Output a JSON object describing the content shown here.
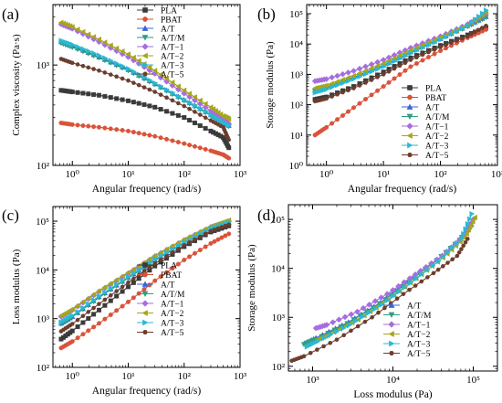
{
  "series_styles": [
    {
      "name": "PLA",
      "color": "#3a3a3a",
      "marker": "square"
    },
    {
      "name": "PBAT",
      "color": "#d9533a",
      "marker": "circle"
    },
    {
      "name": "A/T",
      "color": "#3b63d8",
      "marker": "triangle-up"
    },
    {
      "name": "A/T/M",
      "color": "#2e9e7e",
      "marker": "triangle-down"
    },
    {
      "name": "A/T−1",
      "color": "#a66de0",
      "marker": "diamond"
    },
    {
      "name": "A/T−2",
      "color": "#a6a61a",
      "marker": "triangle-left"
    },
    {
      "name": "A/T−3",
      "color": "#29b9d6",
      "marker": "triangle-right"
    },
    {
      "name": "A/T−5",
      "color": "#6b3d2e",
      "marker": "hexagon"
    }
  ],
  "chart_data": [
    {
      "panel": "(a)",
      "type": "line",
      "xlabel": "Angular frequency (rad/s)",
      "ylabel": "Complex viscosity (Pa·s)",
      "xscale": "log",
      "yscale": "log",
      "xlim": [
        0.45,
        1000
      ],
      "ylim": [
        100,
        4000
      ],
      "xticks": [
        {
          "v": 1,
          "t": "10⁰"
        },
        {
          "v": 10,
          "t": "10¹"
        },
        {
          "v": 100,
          "t": "10²"
        },
        {
          "v": 1000,
          "t": "10³"
        }
      ],
      "yticks": [
        {
          "v": 100,
          "t": "10²"
        },
        {
          "v": 1000,
          "t": "10³"
        }
      ],
      "legend": [
        "PLA",
        "PBAT",
        "A/T",
        "A/T/M",
        "A/T−1",
        "A/T−2",
        "A/T−3",
        "A/T−5"
      ],
      "legend_position": "top-right",
      "series": [
        {
          "name": "PLA",
          "x": [
            0.63,
            1,
            3,
            10,
            30,
            100,
            300,
            500,
            630
          ],
          "y": [
            560,
            540,
            500,
            440,
            380,
            300,
            220,
            190,
            150
          ]
        },
        {
          "name": "PBAT",
          "x": [
            0.63,
            1,
            3,
            10,
            30,
            100,
            300,
            500,
            630
          ],
          "y": [
            265,
            255,
            240,
            220,
            195,
            165,
            140,
            128,
            118
          ]
        },
        {
          "name": "A/T",
          "x": [
            0.63,
            1,
            3,
            10,
            30,
            100,
            300,
            500,
            630
          ],
          "y": [
            1700,
            1550,
            1200,
            900,
            650,
            450,
            320,
            270,
            250
          ]
        },
        {
          "name": "A/T/M",
          "x": [
            0.63,
            1,
            3,
            10,
            30,
            100,
            300,
            500,
            630
          ],
          "y": [
            1650,
            1500,
            1180,
            880,
            640,
            440,
            315,
            265,
            245
          ]
        },
        {
          "name": "A/T−1",
          "x": [
            0.63,
            1,
            3,
            10,
            30,
            100,
            300,
            500,
            630
          ],
          "y": [
            2550,
            2300,
            1700,
            1200,
            820,
            520,
            350,
            290,
            260
          ]
        },
        {
          "name": "A/T−2",
          "x": [
            0.63,
            1,
            3,
            10,
            30,
            100,
            300,
            500,
            630
          ],
          "y": [
            2650,
            2400,
            1800,
            1280,
            880,
            560,
            380,
            310,
            290
          ]
        },
        {
          "name": "A/T−3",
          "x": [
            0.63,
            1,
            3,
            10,
            30,
            100,
            300,
            500,
            630
          ],
          "y": [
            1750,
            1600,
            1250,
            920,
            660,
            450,
            320,
            270,
            250
          ]
        },
        {
          "name": "A/T−5",
          "x": [
            0.63,
            1,
            3,
            10,
            30,
            100,
            300,
            500,
            630
          ],
          "y": [
            1150,
            1050,
            880,
            700,
            540,
            390,
            280,
            240,
            180
          ]
        }
      ]
    },
    {
      "panel": "(b)",
      "type": "line",
      "xlabel": "Angular frequency (rad/s)",
      "ylabel": "Storage modulus (Pa)",
      "xscale": "log",
      "yscale": "log",
      "xlim": [
        0.45,
        1000
      ],
      "ylim": [
        1,
        200000
      ],
      "xticks": [
        {
          "v": 1,
          "t": "10⁰"
        },
        {
          "v": 10,
          "t": "10¹"
        },
        {
          "v": 100,
          "t": "10²"
        },
        {
          "v": 1000,
          "t": "10³"
        }
      ],
      "yticks": [
        {
          "v": 1,
          "t": "10⁰"
        },
        {
          "v": 10,
          "t": "10¹"
        },
        {
          "v": 100,
          "t": "10²"
        },
        {
          "v": 1000,
          "t": "10³"
        },
        {
          "v": 10000,
          "t": "10⁴"
        },
        {
          "v": 100000,
          "t": "10⁵"
        }
      ],
      "legend": [
        "PLA",
        "PBAT",
        "A/T",
        "A/T/M",
        "A/T−1",
        "A/T−2",
        "A/T−3",
        "A/T−5"
      ],
      "legend_position": "bottom-right",
      "series": [
        {
          "name": "PLA",
          "x": [
            0.63,
            1,
            3,
            10,
            30,
            100,
            300,
            630
          ],
          "y": [
            150,
            180,
            400,
            1200,
            3500,
            9000,
            20000,
            35000
          ]
        },
        {
          "name": "PBAT",
          "x": [
            0.63,
            1,
            3,
            10,
            30,
            100,
            300,
            630
          ],
          "y": [
            10,
            18,
            80,
            400,
            1800,
            6000,
            16000,
            30000
          ]
        },
        {
          "name": "A/T",
          "x": [
            0.63,
            1,
            3,
            10,
            30,
            100,
            300,
            630
          ],
          "y": [
            300,
            380,
            800,
            2000,
            5500,
            15000,
            40000,
            80000
          ]
        },
        {
          "name": "A/T/M",
          "x": [
            0.63,
            1,
            3,
            10,
            30,
            100,
            300,
            630
          ],
          "y": [
            280,
            350,
            750,
            1900,
            5200,
            14500,
            38000,
            75000
          ]
        },
        {
          "name": "A/T−1",
          "x": [
            0.63,
            1,
            3,
            10,
            30,
            100,
            300,
            630
          ],
          "y": [
            600,
            700,
            1300,
            3000,
            7500,
            18000,
            45000,
            100000
          ]
        },
        {
          "name": "A/T−2",
          "x": [
            0.63,
            1,
            3,
            10,
            30,
            100,
            300,
            630
          ],
          "y": [
            350,
            430,
            900,
            2300,
            6200,
            16500,
            42000,
            110000
          ]
        },
        {
          "name": "A/T−3",
          "x": [
            0.63,
            1,
            3,
            10,
            30,
            100,
            300,
            630
          ],
          "y": [
            250,
            320,
            700,
            1800,
            5000,
            14000,
            40000,
            130000
          ]
        },
        {
          "name": "A/T−5",
          "x": [
            0.63,
            1,
            3,
            10,
            30,
            100,
            300,
            630
          ],
          "y": [
            130,
            160,
            350,
            1000,
            3000,
            8000,
            18000,
            40000
          ]
        }
      ]
    },
    {
      "panel": "(c)",
      "type": "line",
      "xlabel": "Angular frequency (rad/s)",
      "ylabel": "Loss modulus (Pa)",
      "xscale": "log",
      "yscale": "log",
      "xlim": [
        0.45,
        1000
      ],
      "ylim": [
        100,
        200000
      ],
      "xticks": [
        {
          "v": 1,
          "t": "10⁰"
        },
        {
          "v": 10,
          "t": "10¹"
        },
        {
          "v": 100,
          "t": "10²"
        },
        {
          "v": 1000,
          "t": "10³"
        }
      ],
      "yticks": [
        {
          "v": 100,
          "t": "10²"
        },
        {
          "v": 1000,
          "t": "10³"
        },
        {
          "v": 10000,
          "t": "10⁴"
        },
        {
          "v": 100000,
          "t": "10⁵"
        }
      ],
      "legend": [
        "PLA",
        "PBAT",
        "A/T",
        "A/T/M",
        "A/T−1",
        "A/T−2",
        "A/T−3",
        "A/T−5"
      ],
      "legend_position": "bottom-right",
      "series": [
        {
          "name": "PLA",
          "x": [
            0.63,
            1,
            3,
            10,
            30,
            100,
            300,
            630
          ],
          "y": [
            380,
            560,
            1500,
            4500,
            12000,
            30000,
            60000,
            80000
          ]
        },
        {
          "name": "PBAT",
          "x": [
            0.63,
            1,
            3,
            10,
            30,
            100,
            300,
            630
          ],
          "y": [
            250,
            340,
            800,
            2200,
            6000,
            16000,
            35000,
            55000
          ]
        },
        {
          "name": "A/T",
          "x": [
            0.63,
            1,
            3,
            10,
            30,
            100,
            300,
            630
          ],
          "y": [
            800,
            1100,
            2800,
            7000,
            16000,
            36000,
            70000,
            95000
          ]
        },
        {
          "name": "A/T/M",
          "x": [
            0.63,
            1,
            3,
            10,
            30,
            100,
            300,
            630
          ],
          "y": [
            780,
            1080,
            2700,
            6800,
            15500,
            35000,
            68000,
            92000
          ]
        },
        {
          "name": "A/T−1",
          "x": [
            0.63,
            1,
            3,
            10,
            30,
            100,
            300,
            630
          ],
          "y": [
            1100,
            1500,
            3600,
            8500,
            19000,
            41000,
            76000,
            100000
          ]
        },
        {
          "name": "A/T−2",
          "x": [
            0.63,
            1,
            3,
            10,
            30,
            100,
            300,
            630
          ],
          "y": [
            1150,
            1550,
            3700,
            8800,
            19500,
            42000,
            78000,
            105000
          ]
        },
        {
          "name": "A/T−3",
          "x": [
            0.63,
            1,
            3,
            10,
            30,
            100,
            300,
            630
          ],
          "y": [
            850,
            1150,
            2900,
            7200,
            16500,
            37000,
            71000,
            96000
          ]
        },
        {
          "name": "A/T−5",
          "x": [
            0.63,
            1,
            3,
            10,
            30,
            100,
            300,
            630
          ],
          "y": [
            550,
            780,
            2000,
            5500,
            13500,
            32000,
            63000,
            85000
          ]
        }
      ]
    },
    {
      "panel": "(d)",
      "type": "line",
      "xlabel": "Loss modulus (Pa)",
      "ylabel": "Storage modulus (Pa)",
      "xscale": "log",
      "yscale": "log",
      "xlim": [
        500,
        200000
      ],
      "ylim": [
        80,
        200000
      ],
      "xticks": [
        {
          "v": 1000,
          "t": "10³"
        },
        {
          "v": 10000,
          "t": "10⁴"
        },
        {
          "v": 100000,
          "t": "10⁵"
        }
      ],
      "yticks": [
        {
          "v": 100,
          "t": "10²"
        },
        {
          "v": 1000,
          "t": "10³"
        },
        {
          "v": 10000,
          "t": "10⁴"
        },
        {
          "v": 100000,
          "t": "10⁵"
        }
      ],
      "legend": [
        "A/T",
        "A/T/M",
        "A/T−1",
        "A/T−2",
        "A/T−3",
        "A/T−5"
      ],
      "legend_position": "bottom-right",
      "series": [
        {
          "name": "A/T",
          "x": [
            800,
            1100,
            2800,
            7000,
            16000,
            36000,
            70000,
            95000
          ],
          "y": [
            300,
            380,
            800,
            2000,
            5500,
            15000,
            40000,
            80000
          ]
        },
        {
          "name": "A/T/M",
          "x": [
            780,
            1080,
            2700,
            6800,
            15500,
            35000,
            68000,
            92000
          ],
          "y": [
            280,
            350,
            750,
            1900,
            5200,
            14500,
            38000,
            75000
          ]
        },
        {
          "name": "A/T−1",
          "x": [
            1100,
            1500,
            3600,
            8500,
            19000,
            41000,
            76000,
            100000
          ],
          "y": [
            600,
            700,
            1300,
            3000,
            7500,
            18000,
            45000,
            100000
          ]
        },
        {
          "name": "A/T−2",
          "x": [
            1150,
            1550,
            3700,
            8800,
            19500,
            42000,
            78000,
            105000
          ],
          "y": [
            350,
            430,
            900,
            2300,
            6200,
            16500,
            42000,
            110000
          ]
        },
        {
          "name": "A/T−3",
          "x": [
            850,
            1150,
            2900,
            7200,
            16500,
            37000,
            71000,
            96000
          ],
          "y": [
            250,
            320,
            700,
            1800,
            5000,
            14000,
            40000,
            130000
          ]
        },
        {
          "name": "A/T−5",
          "x": [
            550,
            780,
            2000,
            5500,
            13500,
            32000,
            63000,
            85000
          ],
          "y": [
            130,
            160,
            350,
            1000,
            3000,
            8000,
            18000,
            40000
          ]
        }
      ]
    }
  ]
}
